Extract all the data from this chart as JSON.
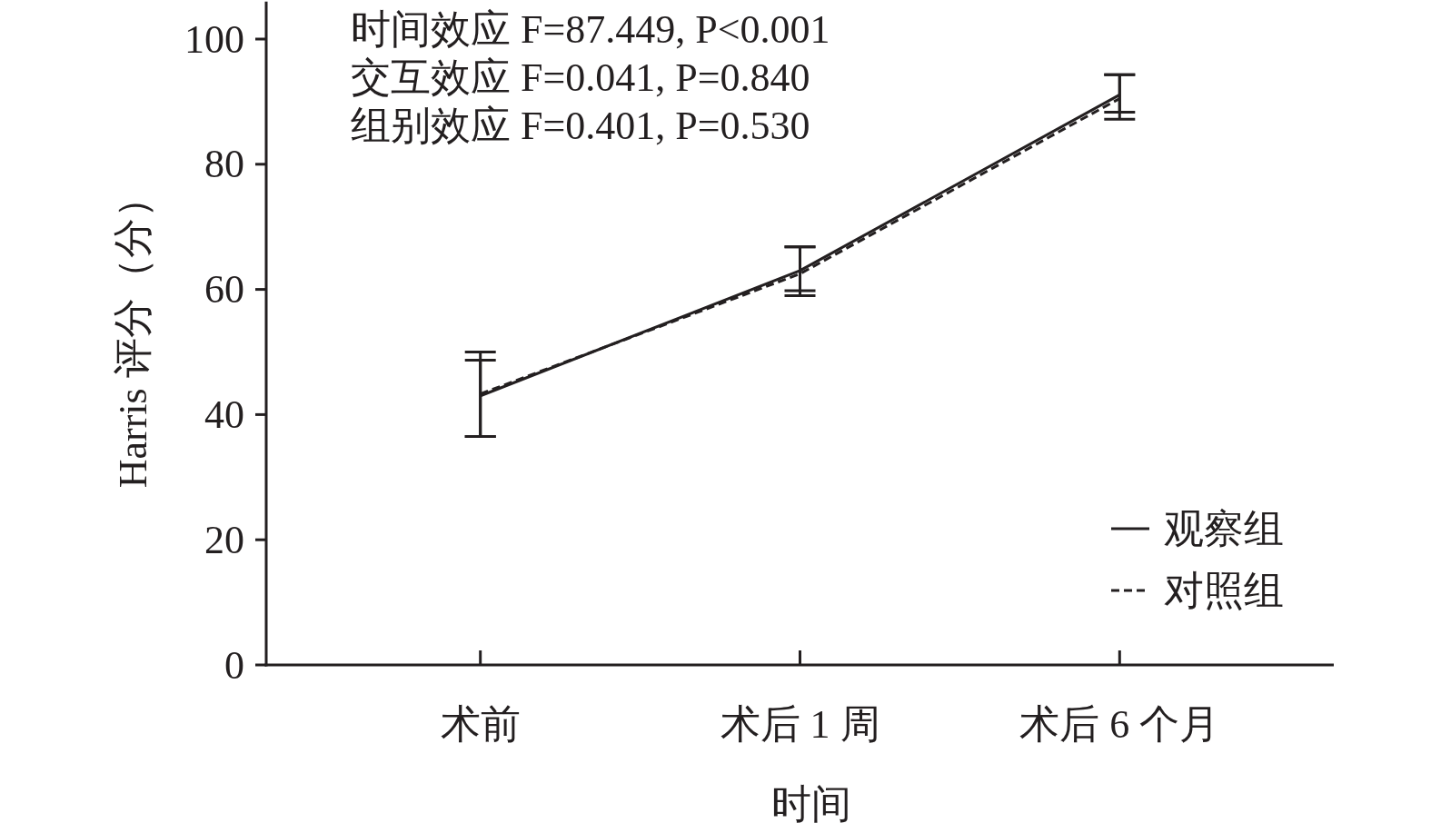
{
  "chart_data": {
    "type": "line",
    "xlabel": "时间",
    "ylabel": "Harris 评分（分）",
    "categories": [
      "术前",
      "术后 1 周",
      "术后 6 个月"
    ],
    "series": [
      {
        "name": "观察组",
        "color": "#231f20",
        "line_style": "solid",
        "values": [
          43.0,
          63.0,
          91.1
        ],
        "errors": [
          [
            36.5,
            50.0
          ],
          [
            59.0,
            66.8
          ],
          [
            87.2,
            94.3
          ]
        ]
      },
      {
        "name": "对照组",
        "color": "#231f20",
        "line_style": "dashed",
        "values": [
          43.3,
          62.5,
          90.5
        ],
        "errors": [
          [
            36.5,
            48.7
          ],
          [
            59.8,
            66.8
          ],
          [
            88.3,
            94.3
          ]
        ]
      }
    ],
    "ylim": [
      0,
      106
    ],
    "yticks": [
      0,
      20,
      40,
      60,
      80,
      100
    ],
    "annotations": [
      "时间效应 F=87.449, P<0.001",
      "交互效应 F=0.041, P=0.840",
      "组别效应 F=0.401, P=0.530"
    ],
    "grid": false,
    "legend": "bottom right",
    "marker": "none"
  }
}
